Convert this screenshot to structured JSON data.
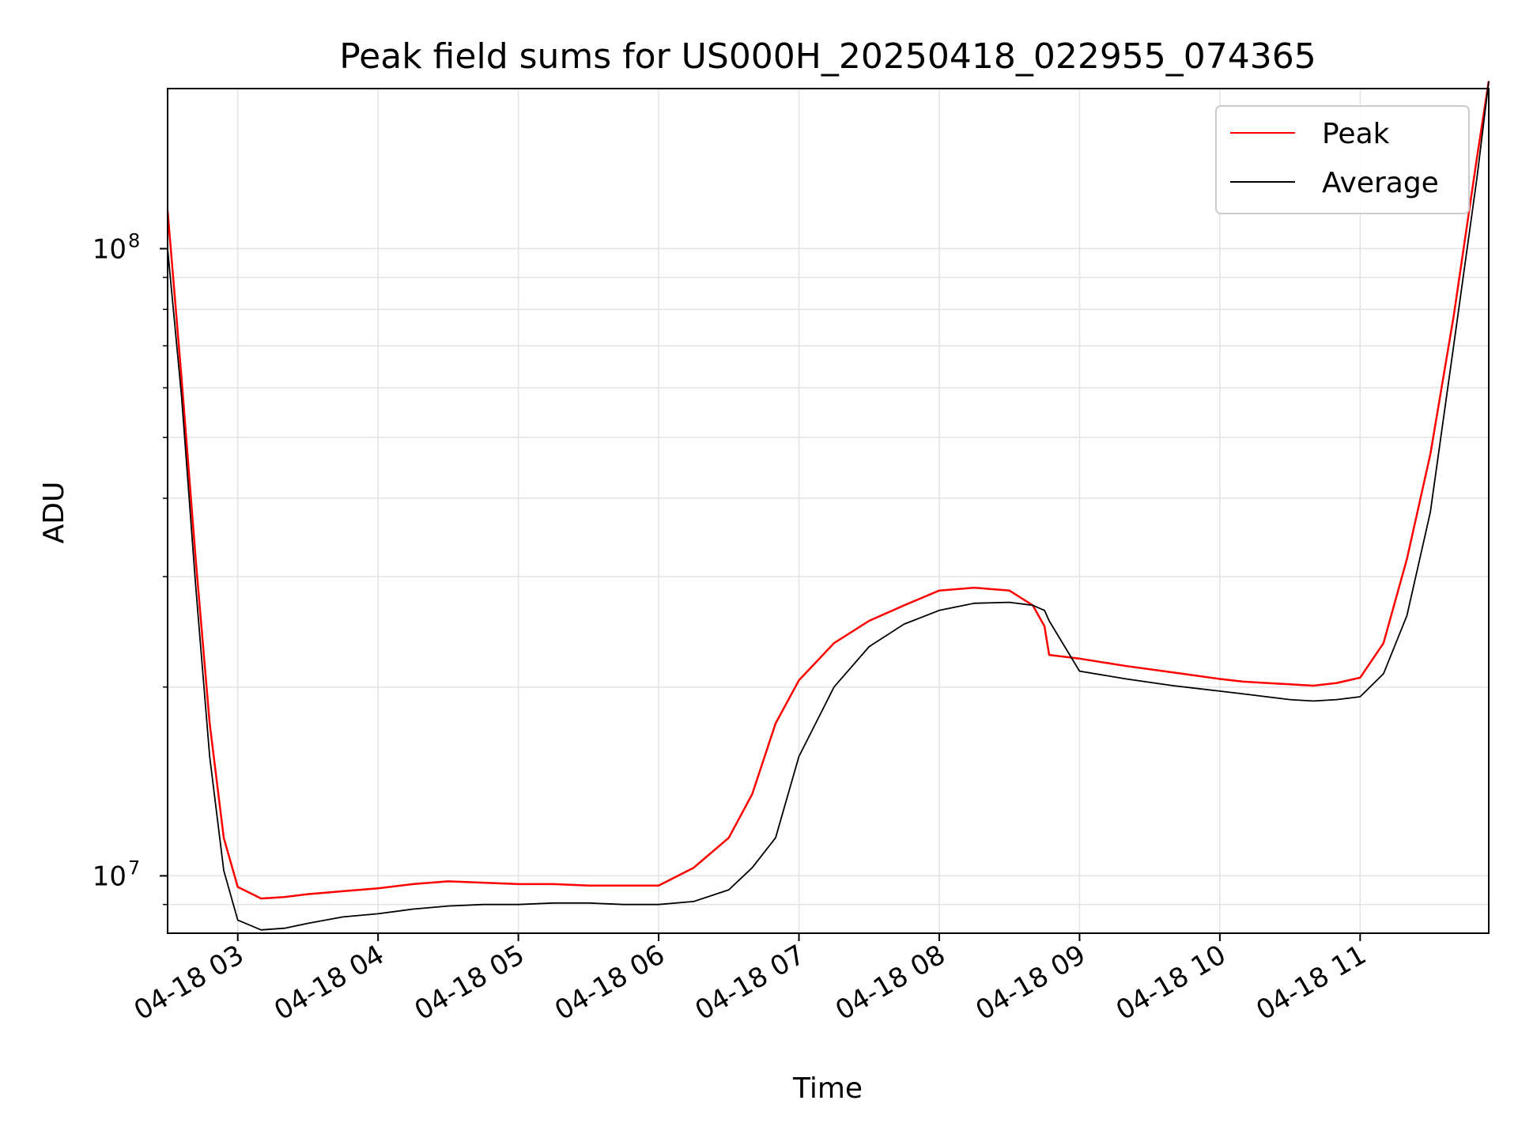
{
  "chart_data": {
    "type": "line",
    "title": "Peak field sums for US000H_20250418_022955_074365",
    "xlabel": "Time",
    "ylabel": "ADU",
    "y_scale": "log",
    "ylim": [
      8100000,
      180000000
    ],
    "xlim": [
      "2025-04-18 02:30",
      "2025-04-18 11:55"
    ],
    "x_ticks": [
      "04-18 03",
      "04-18 04",
      "04-18 05",
      "04-18 06",
      "04-18 07",
      "04-18 08",
      "04-18 09",
      "04-18 10",
      "04-18 11"
    ],
    "x_tick_times": [
      "2025-04-18 03:00",
      "2025-04-18 04:00",
      "2025-04-18 05:00",
      "2025-04-18 06:00",
      "2025-04-18 07:00",
      "2025-04-18 08:00",
      "2025-04-18 09:00",
      "2025-04-18 10:00",
      "2025-04-18 11:00"
    ],
    "y_ticks": [
      {
        "base": "10",
        "exp": "7",
        "value": 10000000
      },
      {
        "base": "10",
        "exp": "8",
        "value": 100000000
      }
    ],
    "grid": true,
    "legend_position": "top-right",
    "series": [
      {
        "name": "Peak",
        "color": "#ff0000",
        "x": [
          "2025-04-18 02:30",
          "2025-04-18 02:36",
          "2025-04-18 02:42",
          "2025-04-18 02:48",
          "2025-04-18 02:54",
          "2025-04-18 03:00",
          "2025-04-18 03:10",
          "2025-04-18 03:20",
          "2025-04-18 03:30",
          "2025-04-18 03:45",
          "2025-04-18 04:00",
          "2025-04-18 04:15",
          "2025-04-18 04:30",
          "2025-04-18 04:45",
          "2025-04-18 05:00",
          "2025-04-18 05:15",
          "2025-04-18 05:30",
          "2025-04-18 05:45",
          "2025-04-18 06:00",
          "2025-04-18 06:15",
          "2025-04-18 06:30",
          "2025-04-18 06:40",
          "2025-04-18 06:50",
          "2025-04-18 07:00",
          "2025-04-18 07:15",
          "2025-04-18 07:30",
          "2025-04-18 07:45",
          "2025-04-18 08:00",
          "2025-04-18 08:15",
          "2025-04-18 08:30",
          "2025-04-18 08:40",
          "2025-04-18 08:45",
          "2025-04-18 08:47",
          "2025-04-18 09:00",
          "2025-04-18 09:20",
          "2025-04-18 09:40",
          "2025-04-18 10:00",
          "2025-04-18 10:10",
          "2025-04-18 10:20",
          "2025-04-18 10:30",
          "2025-04-18 10:40",
          "2025-04-18 10:50",
          "2025-04-18 11:00",
          "2025-04-18 11:10",
          "2025-04-18 11:20",
          "2025-04-18 11:30",
          "2025-04-18 11:40",
          "2025-04-18 11:50",
          "2025-04-18 11:55"
        ],
        "y": [
          115000000,
          62000000,
          32000000,
          17500000,
          11500000,
          9600000,
          9200000,
          9250000,
          9350000,
          9450000,
          9550000,
          9700000,
          9800000,
          9750000,
          9700000,
          9700000,
          9650000,
          9650000,
          9650000,
          10300000,
          11500000,
          13500000,
          17500000,
          20500000,
          23500000,
          25500000,
          27000000,
          28500000,
          28800000,
          28500000,
          27000000,
          25000000,
          22500000,
          22200000,
          21600000,
          21100000,
          20600000,
          20400000,
          20300000,
          20200000,
          20100000,
          20300000,
          20700000,
          23500000,
          32000000,
          47000000,
          78000000,
          140000000,
          185000000
        ]
      },
      {
        "name": "Average",
        "color": "#000000",
        "x": [
          "2025-04-18 02:30",
          "2025-04-18 02:36",
          "2025-04-18 02:42",
          "2025-04-18 02:48",
          "2025-04-18 02:54",
          "2025-04-18 03:00",
          "2025-04-18 03:10",
          "2025-04-18 03:20",
          "2025-04-18 03:30",
          "2025-04-18 03:45",
          "2025-04-18 04:00",
          "2025-04-18 04:15",
          "2025-04-18 04:30",
          "2025-04-18 04:45",
          "2025-04-18 05:00",
          "2025-04-18 05:15",
          "2025-04-18 05:30",
          "2025-04-18 05:45",
          "2025-04-18 06:00",
          "2025-04-18 06:15",
          "2025-04-18 06:30",
          "2025-04-18 06:40",
          "2025-04-18 06:50",
          "2025-04-18 07:00",
          "2025-04-18 07:15",
          "2025-04-18 07:30",
          "2025-04-18 07:45",
          "2025-04-18 08:00",
          "2025-04-18 08:15",
          "2025-04-18 08:30",
          "2025-04-18 08:40",
          "2025-04-18 08:45",
          "2025-04-18 08:47",
          "2025-04-18 09:00",
          "2025-04-18 09:20",
          "2025-04-18 09:40",
          "2025-04-18 10:00",
          "2025-04-18 10:10",
          "2025-04-18 10:20",
          "2025-04-18 10:30",
          "2025-04-18 10:40",
          "2025-04-18 10:50",
          "2025-04-18 11:00",
          "2025-04-18 11:10",
          "2025-04-18 11:20",
          "2025-04-18 11:30",
          "2025-04-18 11:40",
          "2025-04-18 11:50",
          "2025-04-18 11:55"
        ],
        "y": [
          100000000,
          58000000,
          29000000,
          15500000,
          10200000,
          8500000,
          8200000,
          8250000,
          8400000,
          8600000,
          8700000,
          8850000,
          8950000,
          9000000,
          9000000,
          9050000,
          9050000,
          9000000,
          9000000,
          9100000,
          9500000,
          10300000,
          11500000,
          15500000,
          20000000,
          23200000,
          25200000,
          26500000,
          27200000,
          27300000,
          27000000,
          26500000,
          25500000,
          21200000,
          20600000,
          20100000,
          19700000,
          19500000,
          19300000,
          19100000,
          19000000,
          19100000,
          19300000,
          21000000,
          26000000,
          38000000,
          70000000,
          130000000,
          185000000
        ]
      }
    ]
  }
}
